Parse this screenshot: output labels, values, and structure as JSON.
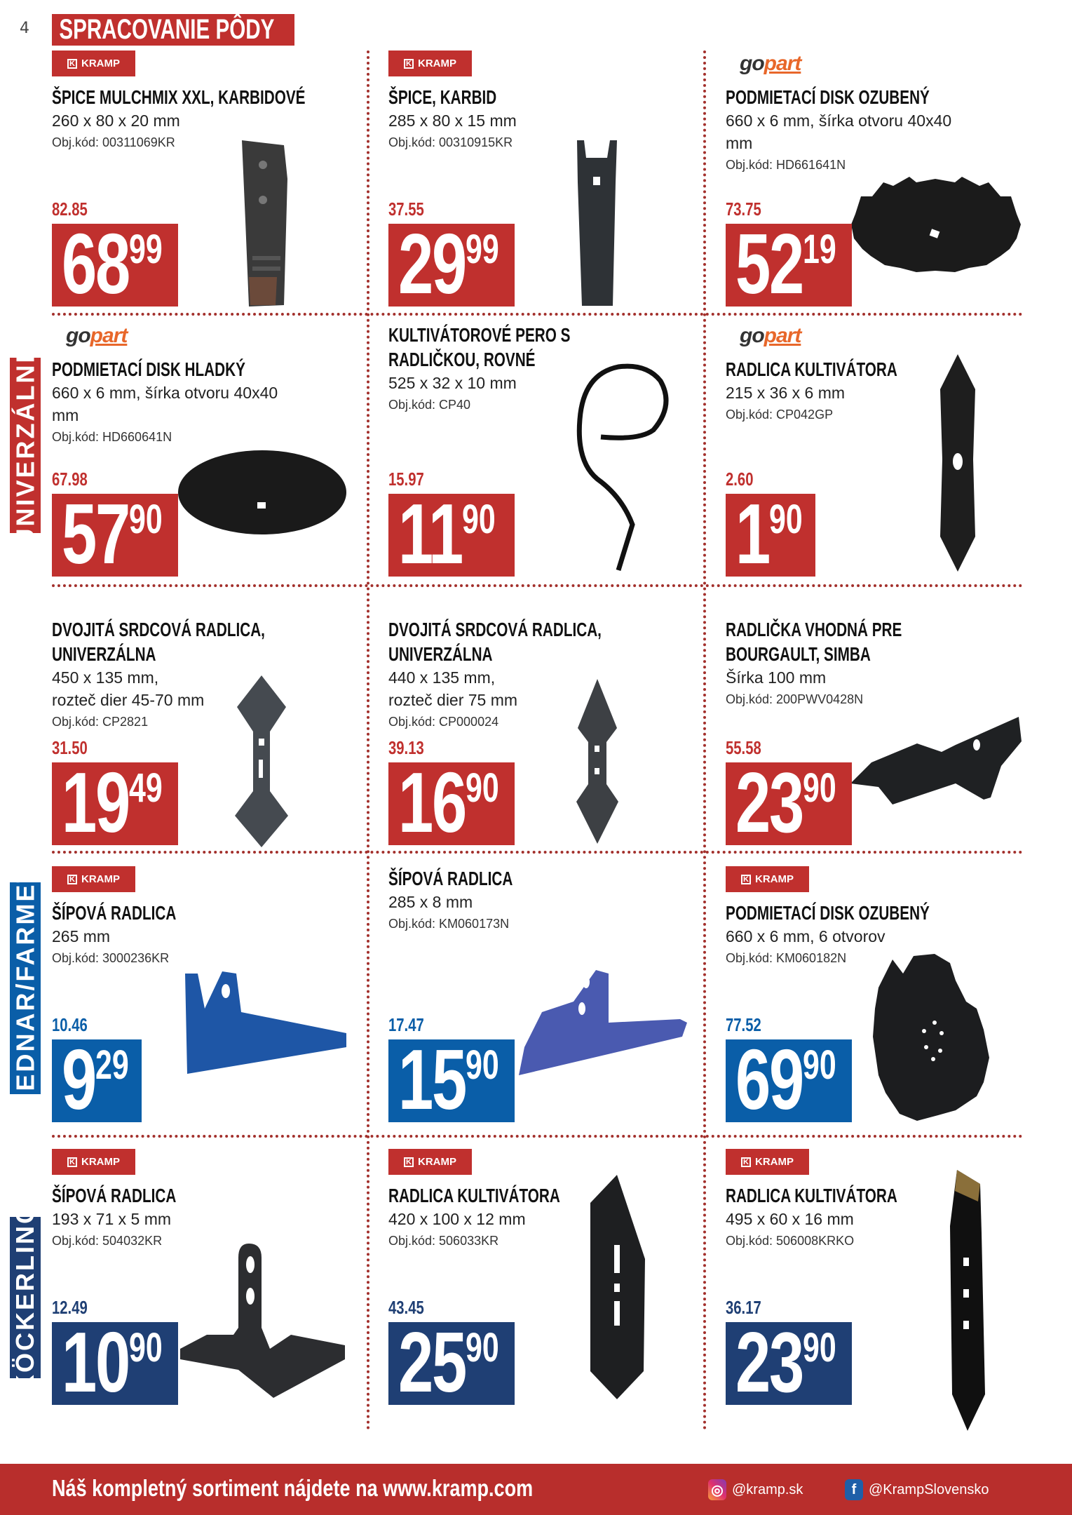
{
  "page_number": "4",
  "page_title": "SPRACOVANIE PÔDY",
  "colors": {
    "red": "#c0302e",
    "blue": "#0a5ea8",
    "navy": "#1f3f74",
    "footer": "#b82e2c"
  },
  "side_labels": [
    "UNIVERZÁLNE",
    "BEDNAR/FARMET",
    "KÖCKERLING"
  ],
  "logos": {
    "kramp": "KRAMP",
    "gopart_go": "go",
    "gopart_part": "part"
  },
  "products": [
    {
      "logo": "kramp",
      "title": [
        "ŠPICE MULCHMIX XXL, KARBIDOVÉ"
      ],
      "specs": [
        "260 x 80 x 20 mm"
      ],
      "code": "Obj.kód: 00311069KR",
      "old_price": "82.85",
      "price_int": "68",
      "price_cents": "99",
      "color": "red"
    },
    {
      "logo": "kramp",
      "title": [
        "ŠPICE, KARBID"
      ],
      "specs": [
        "285 x 80 x 15 mm"
      ],
      "code": "Obj.kód: 00310915KR",
      "old_price": "37.55",
      "price_int": "29",
      "price_cents": "99",
      "color": "red"
    },
    {
      "logo": "gopart",
      "title": [
        "PODMIETACÍ DISK OZUBENÝ"
      ],
      "specs": [
        "660 x 6 mm, šírka otvoru 40x40",
        "mm"
      ],
      "code": "Obj.kód: HD661641N",
      "old_price": "73.75",
      "price_int": "52",
      "price_cents": "19",
      "color": "red"
    },
    {
      "logo": "gopart",
      "title": [
        "PODMIETACÍ DISK HLADKÝ"
      ],
      "specs": [
        "660 x 6 mm, šírka otvoru 40x40",
        "mm"
      ],
      "code": "Obj.kód: HD660641N",
      "old_price": "67.98",
      "price_int": "57",
      "price_cents": "90",
      "color": "red"
    },
    {
      "logo": "",
      "title": [
        "KULTIVÁTOROVÉ PERO S",
        "RADLIČKOU, ROVNÉ"
      ],
      "specs": [
        "525 x 32 x 10 mm"
      ],
      "code": "Obj.kód: CP40",
      "old_price": "15.97",
      "price_int": "11",
      "price_cents": "90",
      "color": "red"
    },
    {
      "logo": "gopart",
      "title": [
        "RADLICA KULTIVÁTORA"
      ],
      "specs": [
        "215 x 36 x 6 mm"
      ],
      "code": "Obj.kód: CP042GP",
      "old_price": "2.60",
      "price_int": "1",
      "price_cents": "90",
      "color": "red"
    },
    {
      "logo": "",
      "title": [
        "DVOJITÁ SRDCOVÁ RADLICA,",
        "UNIVERZÁLNA"
      ],
      "specs": [
        "450 x 135 mm,",
        "rozteč dier 45-70 mm"
      ],
      "code": "Obj.kód: CP2821",
      "old_price": "31.50",
      "price_int": "19",
      "price_cents": "49",
      "color": "red"
    },
    {
      "logo": "",
      "title": [
        "DVOJITÁ SRDCOVÁ RADLICA,",
        "UNIVERZÁLNA"
      ],
      "specs": [
        "440 x 135 mm,",
        "rozteč dier 75 mm"
      ],
      "code": "Obj.kód: CP000024",
      "old_price": "39.13",
      "price_int": "16",
      "price_cents": "90",
      "color": "red"
    },
    {
      "logo": "",
      "title": [
        "RADLIČKA VHODNÁ PRE",
        "BOURGAULT, SIMBA"
      ],
      "specs": [
        "Šírka 100 mm"
      ],
      "code": "Obj.kód: 200PWV0428N",
      "old_price": "55.58",
      "price_int": "23",
      "price_cents": "90",
      "color": "red"
    },
    {
      "logo": "kramp",
      "title": [
        "ŠÍPOVÁ RADLICA"
      ],
      "specs": [
        "265 mm"
      ],
      "code": "Obj.kód: 3000236KR",
      "old_price": "10.46",
      "price_int": "9",
      "price_cents": "29",
      "color": "blue"
    },
    {
      "logo": "",
      "title": [
        "ŠÍPOVÁ RADLICA"
      ],
      "specs": [
        "285 x 8 mm"
      ],
      "code": "Obj.kód: KM060173N",
      "old_price": "17.47",
      "price_int": "15",
      "price_cents": "90",
      "color": "blue"
    },
    {
      "logo": "kramp",
      "title": [
        "PODMIETACÍ DISK OZUBENÝ"
      ],
      "specs": [
        "660 x 6 mm, 6 otvorov"
      ],
      "code": "Obj.kód: KM060182N",
      "old_price": "77.52",
      "price_int": "69",
      "price_cents": "90",
      "color": "blue"
    },
    {
      "logo": "kramp",
      "title": [
        "ŠÍPOVÁ RADLICA"
      ],
      "specs": [
        "193 x 71 x 5 mm"
      ],
      "code": "Obj.kód: 504032KR",
      "old_price": "12.49",
      "price_int": "10",
      "price_cents": "90",
      "color": "navy"
    },
    {
      "logo": "kramp",
      "title": [
        "RADLICA KULTIVÁTORA"
      ],
      "specs": [
        "420 x 100 x 12 mm"
      ],
      "code": "Obj.kód: 506033KR",
      "old_price": "43.45",
      "price_int": "25",
      "price_cents": "90",
      "color": "navy"
    },
    {
      "logo": "kramp",
      "title": [
        "RADLICA KULTIVÁTORA"
      ],
      "specs": [
        "495 x 60 x 16 mm"
      ],
      "code": "Obj.kód: 506008KRKO",
      "old_price": "36.17",
      "price_int": "23",
      "price_cents": "90",
      "color": "navy"
    }
  ],
  "footer": {
    "message": "Náš kompletný sortiment nájdete na www.kramp.com",
    "instagram": "@kramp.sk",
    "facebook": "@KrampSlovensko"
  }
}
